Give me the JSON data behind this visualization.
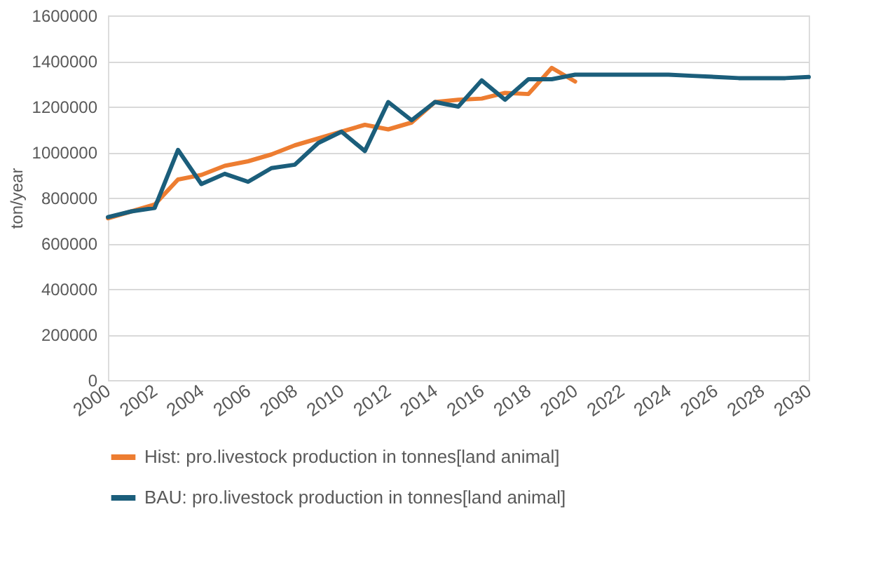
{
  "chart_data": {
    "type": "line",
    "ylabel": "ton/year",
    "x": [
      2000,
      2001,
      2002,
      2003,
      2004,
      2005,
      2006,
      2007,
      2008,
      2009,
      2010,
      2011,
      2012,
      2013,
      2014,
      2015,
      2016,
      2017,
      2018,
      2019,
      2020,
      2021,
      2022,
      2023,
      2024,
      2025,
      2026,
      2027,
      2028,
      2029,
      2030
    ],
    "xlim": [
      2000,
      2030
    ],
    "xticks": [
      2000,
      2002,
      2004,
      2006,
      2008,
      2010,
      2012,
      2014,
      2016,
      2018,
      2020,
      2022,
      2024,
      2026,
      2028,
      2030
    ],
    "ylim": [
      0,
      1600000
    ],
    "yticks": [
      0,
      200000,
      400000,
      600000,
      800000,
      1000000,
      1200000,
      1400000,
      1600000
    ],
    "grid": "y",
    "legend": "bottom",
    "marker": "none",
    "line_style": "solid",
    "series": [
      {
        "name": "Hist: pro.livestock production in tonnes[land animal]",
        "color": "#ed7d31",
        "values": [
          710000,
          740000,
          770000,
          880000,
          900000,
          940000,
          960000,
          990000,
          1030000,
          1060000,
          1090000,
          1120000,
          1100000,
          1130000,
          1220000,
          1230000,
          1235000,
          1260000,
          1255000,
          1370000,
          1310000,
          null,
          null,
          null,
          null,
          null,
          null,
          null,
          null,
          null,
          null
        ]
      },
      {
        "name": "BAU: pro.livestock production in tonnes[land animal]",
        "color": "#1b5e7b",
        "values": [
          715000,
          740000,
          755000,
          1010000,
          860000,
          905000,
          870000,
          930000,
          945000,
          1040000,
          1090000,
          1005000,
          1220000,
          1140000,
          1220000,
          1200000,
          1315000,
          1230000,
          1320000,
          1320000,
          1340000,
          1340000,
          1340000,
          1340000,
          1340000,
          1335000,
          1330000,
          1325000,
          1325000,
          1325000,
          1330000
        ]
      }
    ]
  }
}
